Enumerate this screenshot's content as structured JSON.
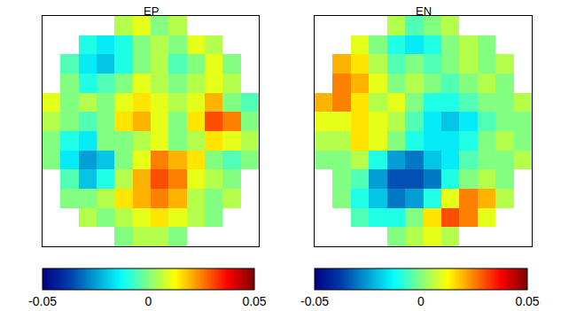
{
  "chart_data": [
    {
      "type": "heatmap",
      "title": "EP",
      "color": "Jet",
      "tick_labels": false,
      "cells": [
        [
          null,
          null,
          null,
          null,
          0.005,
          0.01,
          0.0,
          0.005,
          null,
          null,
          null,
          null
        ],
        [
          null,
          null,
          -0.01,
          -0.015,
          -0.01,
          0.0,
          0.005,
          0.0,
          0.01,
          0.005,
          null,
          null
        ],
        [
          null,
          -0.005,
          -0.015,
          -0.02,
          -0.01,
          0.0,
          0.005,
          -0.005,
          0.0,
          0.01,
          0.0,
          null
        ],
        [
          null,
          0.0,
          -0.01,
          -0.005,
          0.0,
          0.01,
          0.005,
          0.0,
          0.005,
          0.01,
          0.005,
          null
        ],
        [
          0.01,
          0.0,
          0.005,
          0.0,
          0.01,
          0.015,
          0.01,
          0.005,
          0.01,
          0.02,
          0.0,
          -0.005
        ],
        [
          0.005,
          0.0,
          -0.005,
          0.0,
          0.015,
          0.02,
          0.01,
          0.0,
          0.015,
          0.03,
          0.025,
          0.0
        ],
        [
          0.0,
          -0.01,
          -0.015,
          0.0,
          0.0,
          0.005,
          0.01,
          0.0,
          0.005,
          0.015,
          0.01,
          0.005
        ],
        [
          0.0,
          -0.015,
          -0.025,
          -0.02,
          0.0,
          0.01,
          0.025,
          0.02,
          0.015,
          0.0,
          -0.005,
          0.0
        ],
        [
          null,
          -0.005,
          -0.02,
          -0.01,
          0.005,
          0.02,
          0.03,
          0.025,
          0.01,
          0.005,
          0.0,
          null
        ],
        [
          null,
          0.0,
          0.0,
          0.005,
          0.015,
          0.02,
          0.025,
          0.02,
          0.005,
          0.0,
          0.005,
          null
        ],
        [
          null,
          null,
          0.005,
          0.0,
          0.005,
          0.01,
          0.015,
          0.01,
          0.005,
          0.0,
          null,
          null
        ],
        [
          null,
          null,
          null,
          null,
          0.0,
          0.005,
          0.005,
          0.0,
          null,
          null,
          null,
          null
        ]
      ],
      "colorbar": {
        "range": [
          -0.05,
          0.05
        ],
        "ticks": [
          -0.05,
          0,
          0.05
        ]
      }
    },
    {
      "type": "heatmap",
      "title": "EN",
      "color": "Jet",
      "tick_labels": false,
      "cells": [
        [
          null,
          null,
          null,
          null,
          0.005,
          -0.005,
          0.0,
          0.005,
          null,
          null,
          null,
          null
        ],
        [
          null,
          null,
          0.01,
          0.0,
          -0.01,
          -0.015,
          -0.01,
          0.0,
          0.005,
          0.0,
          null,
          null
        ],
        [
          null,
          0.02,
          0.015,
          0.005,
          -0.005,
          0.0,
          -0.005,
          0.0,
          0.005,
          0.0,
          0.005,
          null
        ],
        [
          null,
          0.025,
          0.02,
          0.01,
          0.0,
          0.005,
          0.0,
          -0.005,
          0.0,
          0.005,
          0.0,
          null
        ],
        [
          0.02,
          0.025,
          0.015,
          0.005,
          0.01,
          0.0,
          -0.01,
          -0.01,
          -0.005,
          0.0,
          0.0,
          0.005
        ],
        [
          0.01,
          0.01,
          0.015,
          0.01,
          0.005,
          -0.005,
          -0.015,
          -0.02,
          -0.015,
          -0.005,
          0.0,
          0.0
        ],
        [
          0.005,
          0.005,
          0.015,
          0.01,
          0.0,
          -0.01,
          -0.015,
          -0.015,
          -0.01,
          0.0,
          0.005,
          0.0
        ],
        [
          0.0,
          0.0,
          0.005,
          -0.01,
          -0.025,
          -0.03,
          -0.02,
          -0.015,
          -0.005,
          0.0,
          0.0,
          0.005
        ],
        [
          null,
          0.0,
          -0.005,
          -0.025,
          -0.035,
          -0.035,
          -0.03,
          -0.01,
          0.0,
          0.005,
          0.0,
          null
        ],
        [
          null,
          0.0,
          -0.01,
          -0.02,
          -0.03,
          -0.025,
          -0.01,
          0.01,
          0.025,
          0.02,
          0.005,
          null
        ],
        [
          null,
          null,
          -0.005,
          -0.01,
          -0.01,
          0.0,
          0.015,
          0.03,
          0.025,
          0.01,
          null,
          null
        ],
        [
          null,
          null,
          null,
          null,
          0.0,
          0.005,
          0.01,
          0.005,
          null,
          null,
          null,
          null
        ]
      ],
      "colorbar": {
        "range": [
          -0.05,
          0.05
        ],
        "ticks": [
          -0.05,
          0,
          0.05
        ]
      }
    }
  ]
}
